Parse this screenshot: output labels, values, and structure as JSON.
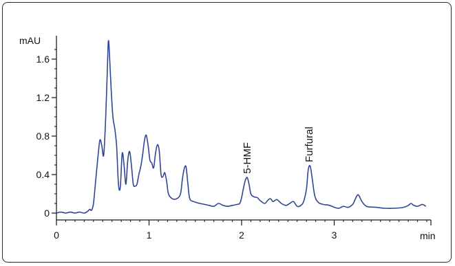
{
  "chart_data": {
    "type": "line",
    "ylabel": "mAU",
    "xlabel": "min",
    "xlim": [
      0,
      4.0
    ],
    "ylim": [
      -0.05,
      1.85
    ],
    "x_ticks": [
      0,
      1,
      2,
      3
    ],
    "y_ticks": [
      0,
      0.4,
      0.8,
      1.2,
      1.6
    ],
    "x_tick_labels": [
      "0",
      "1",
      "2",
      "3"
    ],
    "y_tick_labels": [
      "0",
      "0.4",
      "0.8",
      "1.2",
      "1.6"
    ],
    "line_color": "#2f4591",
    "series": [
      {
        "x": [
          0.0,
          0.05,
          0.1,
          0.15,
          0.2,
          0.25,
          0.3,
          0.34,
          0.36,
          0.38,
          0.4,
          0.42,
          0.45,
          0.47,
          0.49,
          0.51,
          0.53,
          0.55,
          0.56,
          0.57,
          0.59,
          0.61,
          0.63,
          0.65,
          0.67,
          0.69,
          0.71,
          0.73,
          0.75,
          0.77,
          0.79,
          0.81,
          0.83,
          0.85,
          0.87,
          0.89,
          0.91,
          0.93,
          0.95,
          0.97,
          0.99,
          1.01,
          1.03,
          1.05,
          1.07,
          1.09,
          1.11,
          1.13,
          1.15,
          1.17,
          1.19,
          1.21,
          1.25,
          1.3,
          1.34,
          1.36,
          1.38,
          1.4,
          1.42,
          1.44,
          1.48,
          1.55,
          1.6,
          1.65,
          1.7,
          1.75,
          1.8,
          1.85,
          1.9,
          1.95,
          1.98,
          2.0,
          2.02,
          2.04,
          2.06,
          2.08,
          2.1,
          2.13,
          2.17,
          2.2,
          2.25,
          2.28,
          2.31,
          2.34,
          2.38,
          2.43,
          2.48,
          2.52,
          2.56,
          2.6,
          2.64,
          2.67,
          2.7,
          2.72,
          2.74,
          2.76,
          2.79,
          2.83,
          2.88,
          2.95,
          3.0,
          3.05,
          3.1,
          3.15,
          3.2,
          3.23,
          3.26,
          3.3,
          3.35,
          3.45,
          3.55,
          3.65,
          3.75,
          3.8,
          3.83,
          3.86,
          3.9,
          3.95,
          3.99
        ],
        "y": [
          0.0,
          0.01,
          0.0,
          0.01,
          0.0,
          0.01,
          0.0,
          0.02,
          0.04,
          0.03,
          0.1,
          0.3,
          0.6,
          0.76,
          0.7,
          0.6,
          0.95,
          1.5,
          1.78,
          1.7,
          1.3,
          1.0,
          0.88,
          0.7,
          0.3,
          0.27,
          0.62,
          0.5,
          0.3,
          0.55,
          0.64,
          0.5,
          0.3,
          0.28,
          0.3,
          0.4,
          0.48,
          0.6,
          0.75,
          0.81,
          0.7,
          0.55,
          0.52,
          0.47,
          0.62,
          0.71,
          0.65,
          0.4,
          0.38,
          0.42,
          0.33,
          0.2,
          0.15,
          0.15,
          0.2,
          0.35,
          0.46,
          0.48,
          0.3,
          0.15,
          0.12,
          0.1,
          0.09,
          0.08,
          0.07,
          0.1,
          0.08,
          0.07,
          0.08,
          0.09,
          0.1,
          0.16,
          0.26,
          0.34,
          0.37,
          0.3,
          0.2,
          0.17,
          0.16,
          0.13,
          0.1,
          0.13,
          0.15,
          0.12,
          0.14,
          0.1,
          0.08,
          0.1,
          0.12,
          0.07,
          0.08,
          0.12,
          0.25,
          0.45,
          0.49,
          0.38,
          0.18,
          0.11,
          0.09,
          0.08,
          0.06,
          0.05,
          0.07,
          0.06,
          0.09,
          0.15,
          0.19,
          0.12,
          0.07,
          0.06,
          0.05,
          0.05,
          0.06,
          0.08,
          0.1,
          0.08,
          0.07,
          0.09,
          0.07
        ]
      }
    ],
    "annotations": [
      {
        "text": "5-HMF",
        "x": 2.06,
        "y": 0.38
      },
      {
        "text": "Furfural",
        "x": 2.73,
        "y": 0.5
      }
    ]
  }
}
